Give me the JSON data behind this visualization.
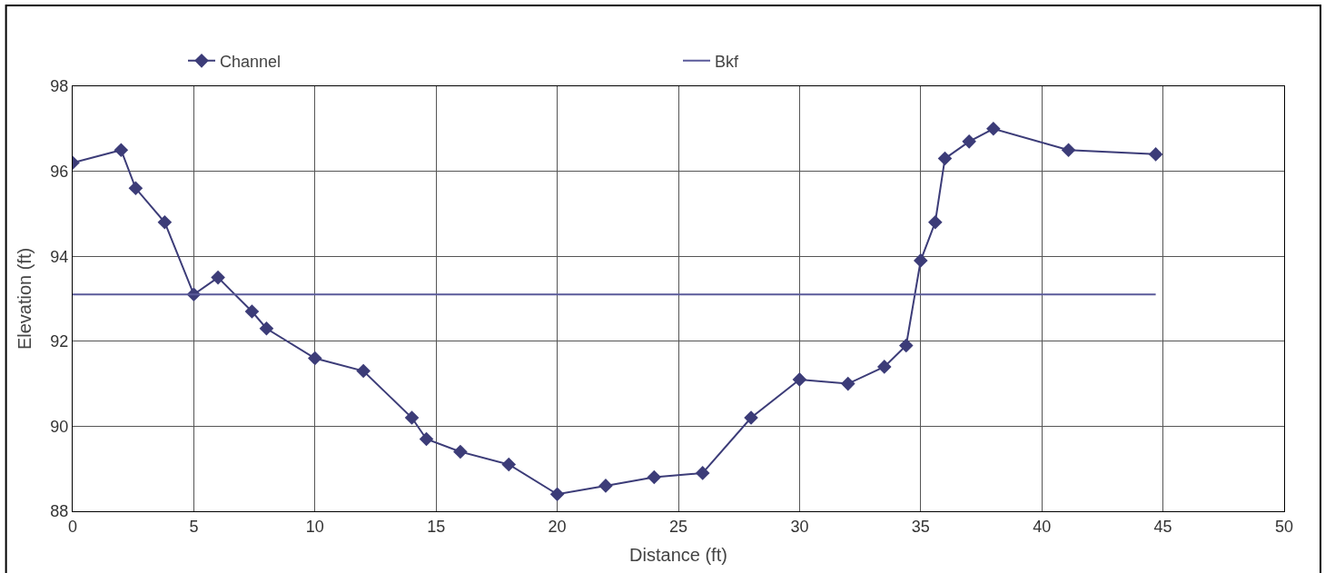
{
  "chart_data": {
    "type": "line",
    "xlabel": "Distance (ft)",
    "ylabel": "Elevation (ft)",
    "xlim": [
      0,
      50
    ],
    "xticks": [
      0,
      5,
      10,
      15,
      20,
      25,
      30,
      35,
      40,
      45,
      50
    ],
    "ylim": [
      88,
      98
    ],
    "yticks": [
      88,
      90,
      92,
      94,
      96,
      98
    ],
    "grid": true,
    "legend": "top",
    "series": [
      {
        "name": "Channel",
        "color": "#3c3c78",
        "marker": "diamond",
        "x": [
          0,
          2,
          2.6,
          3.8,
          5,
          6,
          7.4,
          8,
          10,
          12,
          14,
          14.6,
          16,
          18,
          20,
          22,
          24,
          26,
          28,
          30,
          32,
          33.5,
          34.4,
          35,
          35.6,
          36,
          37,
          38,
          41.1,
          44.7
        ],
        "values": [
          96.2,
          96.5,
          95.6,
          94.8,
          93.1,
          93.5,
          92.7,
          92.3,
          91.6,
          91.3,
          90.2,
          89.7,
          89.4,
          89.1,
          88.4,
          88.6,
          88.8,
          88.9,
          90.2,
          91.1,
          91.0,
          91.4,
          91.9,
          93.9,
          94.8,
          96.3,
          96.7,
          97.0,
          96.5,
          96.4
        ]
      },
      {
        "name": "Bkf",
        "color": "#5a5a9a",
        "marker": "none",
        "x": [
          0,
          44.7
        ],
        "values": [
          93.1,
          93.1
        ]
      }
    ]
  }
}
